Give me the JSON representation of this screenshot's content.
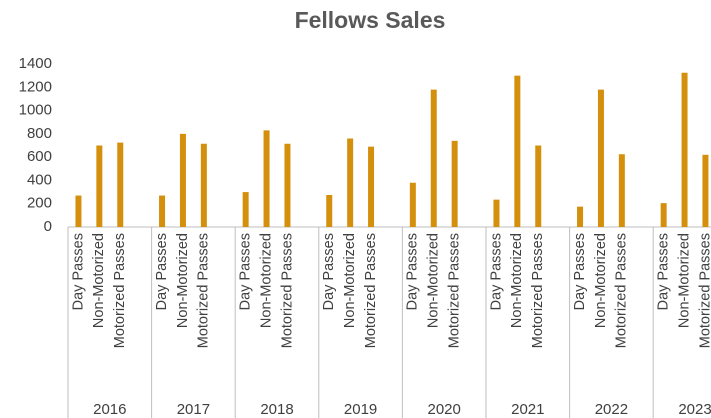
{
  "chart_data": {
    "type": "bar",
    "title": "Fellows Sales",
    "categories": [
      "Day Passes",
      "Non-Motorized",
      "Motorized Passes"
    ],
    "groups": [
      {
        "label": "2016",
        "values": [
          270,
          700,
          725
        ]
      },
      {
        "label": "2017",
        "values": [
          270,
          800,
          715
        ]
      },
      {
        "label": "2018",
        "values": [
          300,
          830,
          715
        ]
      },
      {
        "label": "2019",
        "values": [
          275,
          760,
          690
        ]
      },
      {
        "label": "2020",
        "values": [
          380,
          1180,
          740
        ]
      },
      {
        "label": "2021",
        "values": [
          235,
          1300,
          700
        ]
      },
      {
        "label": "2022",
        "values": [
          175,
          1180,
          625
        ]
      },
      {
        "label": "2023",
        "values": [
          205,
          1325,
          620
        ]
      }
    ],
    "color": "#d4900c",
    "ylim": [
      0,
      1400
    ],
    "yticks": [
      0,
      200,
      400,
      600,
      800,
      1000,
      1200,
      1400
    ],
    "grid": false
  }
}
